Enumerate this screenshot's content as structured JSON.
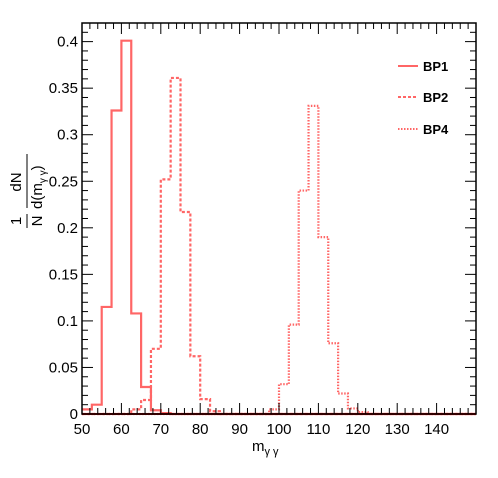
{
  "chart_data": {
    "type": "histogram",
    "x_label_main": "m",
    "x_label_sub": "γ γ",
    "y_label": {
      "num": "1",
      "den": "N",
      "frac_num": "dN",
      "frac_den_main": "d(m",
      "frac_den_sub": "γ γ",
      "frac_den_close": ")"
    },
    "xlim": [
      50,
      150
    ],
    "ylim": [
      0,
      0.42
    ],
    "x_ticks": [
      50,
      60,
      70,
      80,
      90,
      100,
      110,
      120,
      130,
      140
    ],
    "x_tick_labels": [
      "50",
      "60",
      "70",
      "80",
      "90",
      "100",
      "110",
      "120",
      "130",
      "140"
    ],
    "y_ticks": [
      0,
      0.05,
      0.1,
      0.15,
      0.2,
      0.25,
      0.3,
      0.35,
      0.4
    ],
    "y_tick_labels": [
      "0",
      "0.05",
      "0.1",
      "0.15",
      "0.2",
      "0.25",
      "0.3",
      "0.35",
      "0.4"
    ],
    "bin_edges_start": 50,
    "bin_width": 2.5,
    "color": "#ff6666",
    "baseline_color": "#cc0000",
    "legend_position": "top-right",
    "series": [
      {
        "name": "BP1",
        "style": "solid",
        "values": [
          0.005,
          0.01,
          0.115,
          0.326,
          0.401,
          0.108,
          0.029,
          0.004,
          0.001,
          0,
          0,
          0,
          0,
          0,
          0,
          0,
          0,
          0,
          0,
          0,
          0,
          0,
          0,
          0,
          0,
          0,
          0,
          0,
          0,
          0,
          0,
          0,
          0,
          0,
          0,
          0,
          0,
          0,
          0,
          0
        ]
      },
      {
        "name": "BP2",
        "style": "dashed",
        "values": [
          0,
          0,
          0,
          0,
          0,
          0.005,
          0.015,
          0.07,
          0.252,
          0.361,
          0.217,
          0.062,
          0.016,
          0.003,
          0,
          0,
          0,
          0,
          0,
          0,
          0,
          0,
          0,
          0,
          0,
          0,
          0,
          0,
          0,
          0,
          0,
          0,
          0,
          0,
          0,
          0,
          0,
          0,
          0,
          0
        ]
      },
      {
        "name": "BP4",
        "style": "dotted",
        "values": [
          0,
          0,
          0,
          0,
          0,
          0,
          0,
          0,
          0,
          0,
          0,
          0,
          0,
          0,
          0,
          0,
          0,
          0,
          0,
          0.005,
          0.032,
          0.096,
          0.24,
          0.331,
          0.19,
          0.076,
          0.022,
          0.006,
          0.002,
          0,
          0,
          0,
          0,
          0,
          0,
          0,
          0,
          0,
          0,
          0
        ]
      }
    ]
  }
}
